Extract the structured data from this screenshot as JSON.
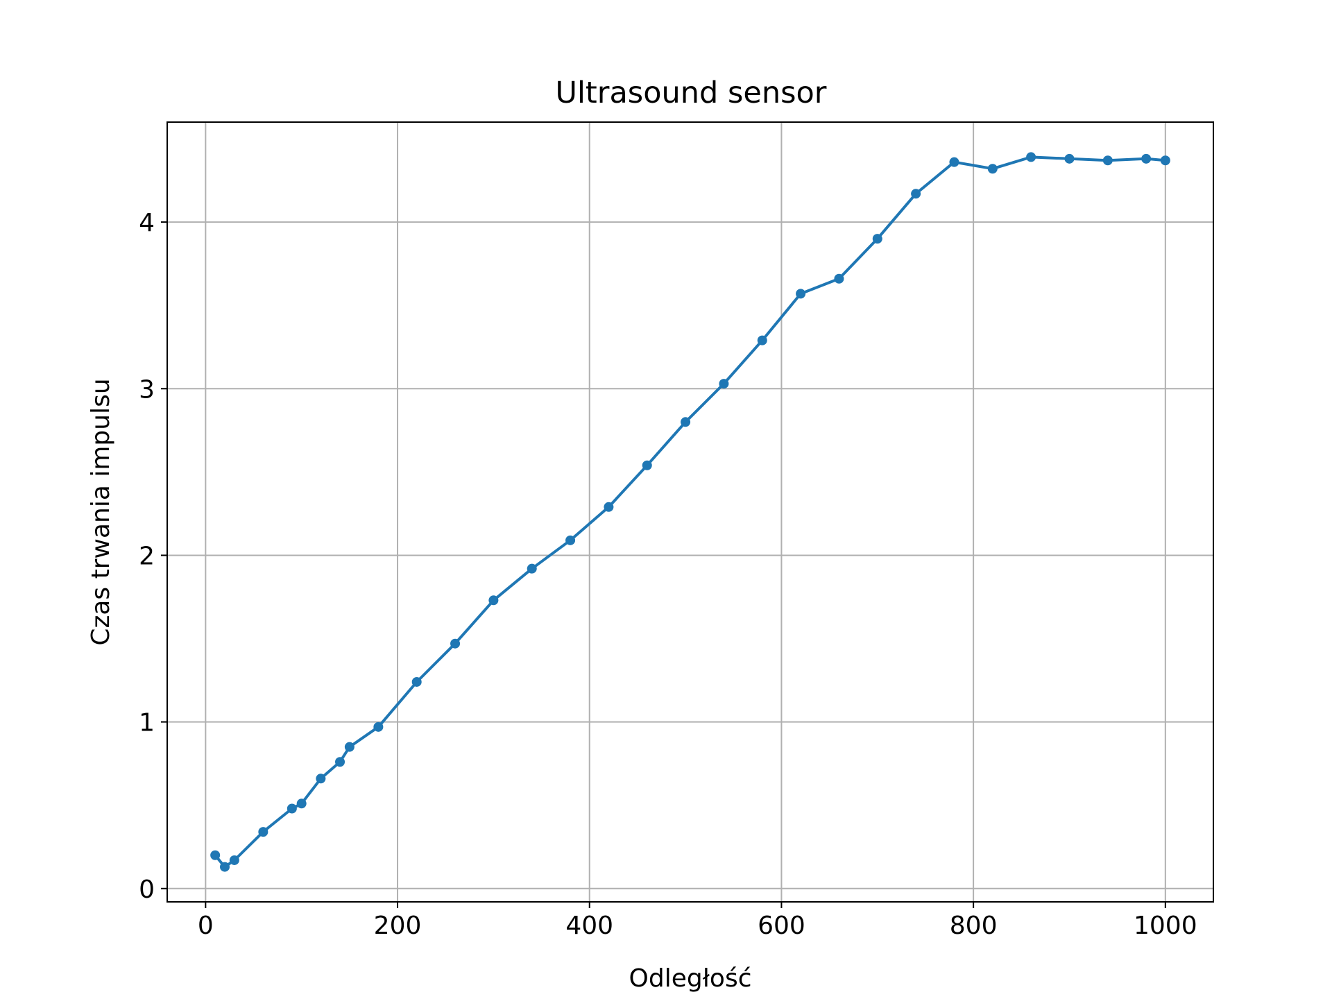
{
  "chart_data": {
    "type": "line",
    "title": "Ultrasound sensor",
    "xlabel": "Odległość",
    "ylabel": "Czas trwania impulsu",
    "xlim": [
      -40,
      1050
    ],
    "ylim": [
      -0.08,
      4.6
    ],
    "xticks": [
      0,
      200,
      400,
      600,
      800,
      1000
    ],
    "yticks": [
      0,
      1,
      2,
      3,
      4
    ],
    "grid": true,
    "series": [
      {
        "color": "#1f77b4",
        "marker": "circle",
        "x": [
          10,
          20,
          30,
          60,
          90,
          100,
          120,
          140,
          150,
          180,
          220,
          260,
          300,
          340,
          380,
          420,
          460,
          500,
          540,
          580,
          620,
          660,
          700,
          740,
          780,
          820,
          860,
          900,
          940,
          980,
          1000
        ],
        "y": [
          0.2,
          0.13,
          0.17,
          0.34,
          0.48,
          0.51,
          0.66,
          0.76,
          0.85,
          0.97,
          1.24,
          1.47,
          1.73,
          1.92,
          2.09,
          2.29,
          2.54,
          2.8,
          3.03,
          3.29,
          3.57,
          3.66,
          3.9,
          4.17,
          4.36,
          4.32,
          4.39,
          4.38,
          4.37,
          4.38,
          4.37
        ]
      }
    ]
  }
}
